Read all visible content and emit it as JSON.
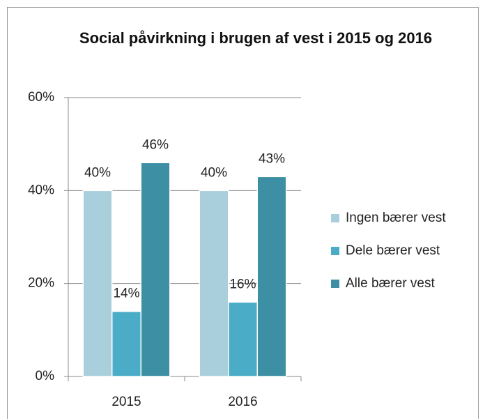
{
  "chart_data": {
    "type": "bar",
    "title": "Social påvirkning i brugen af vest i 2015 og 2016",
    "categories": [
      "2015",
      "2016"
    ],
    "series": [
      {
        "name": "Ingen bærer vest",
        "color": "#a9cfdc",
        "values": [
          40,
          40
        ],
        "value_labels": [
          "40%",
          "40%"
        ]
      },
      {
        "name": "Dele bærer vest",
        "color": "#4aacc6",
        "values": [
          14,
          16
        ],
        "value_labels": [
          "14%",
          "16%"
        ]
      },
      {
        "name": "Alle bærer vest",
        "color": "#3d8fa3",
        "values": [
          46,
          43
        ],
        "value_labels": [
          "46%",
          "43%"
        ]
      }
    ],
    "ylim": [
      0,
      60
    ],
    "yticks": [
      {
        "value": 0,
        "label": "0%"
      },
      {
        "value": 20,
        "label": "20%"
      },
      {
        "value": 40,
        "label": "40%"
      },
      {
        "value": 60,
        "label": "60%"
      }
    ],
    "grid": true,
    "legend": "right"
  }
}
